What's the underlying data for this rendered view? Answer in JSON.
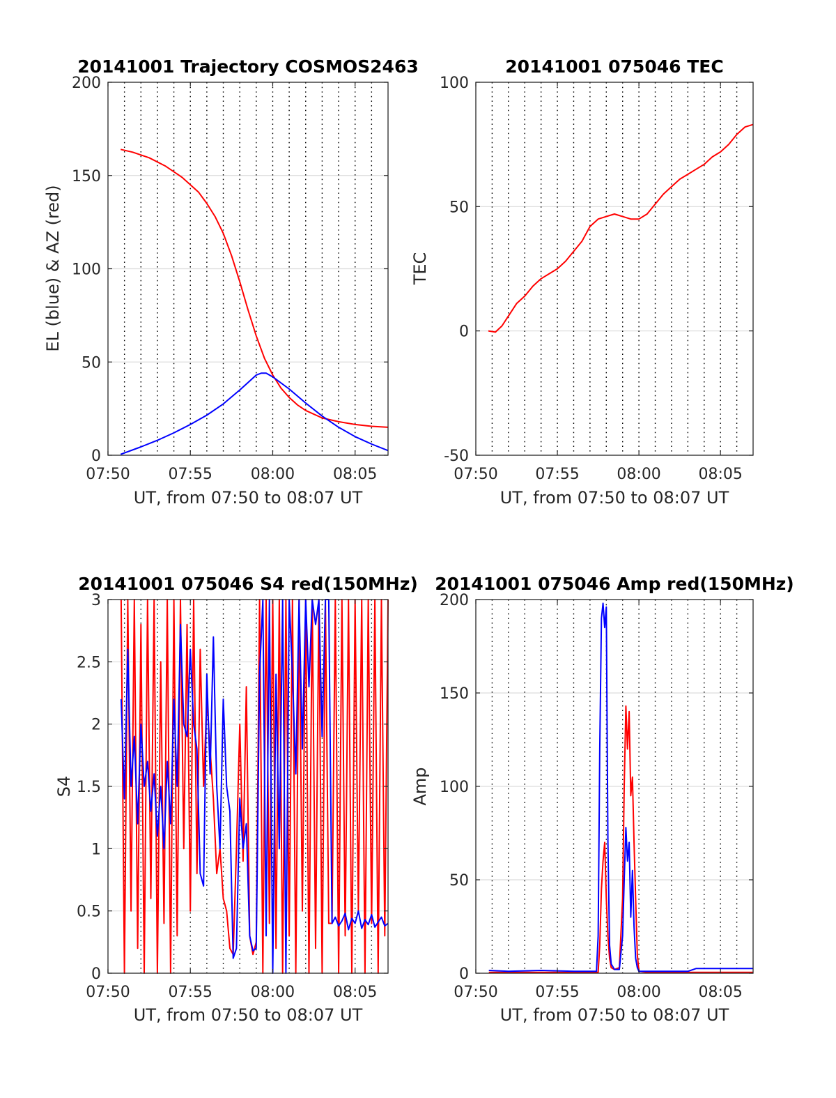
{
  "chart_data": [
    {
      "id": "trajectory",
      "type": "line",
      "title": "20141001 Trajectory COSMOS2463",
      "xlabel": "UT, from 07:50 to 08:07 UT",
      "ylabel": "EL (blue) & AZ (red)",
      "xlim": [
        0,
        17
      ],
      "ylim": [
        0,
        200
      ],
      "xticks": [
        0,
        5,
        10,
        15
      ],
      "xticklabels": [
        "07:50",
        "07:55",
        "08:00",
        "08:05"
      ],
      "yticks": [
        0,
        50,
        100,
        150,
        200
      ],
      "yticklabels": [
        "0",
        "50",
        "100",
        "150",
        "200"
      ],
      "x_unit": "minutes after 07:50 UT",
      "grid": true,
      "series": [
        {
          "color": "#ff0000",
          "x": [
            0.77,
            1.5,
            2.5,
            3.5,
            4.5,
            5.5,
            6.0,
            6.5,
            7.0,
            7.5,
            8.0,
            8.5,
            9.0,
            9.5,
            10.0,
            10.5,
            11.0,
            11.5,
            12.0,
            13.0,
            14.0,
            15.0,
            16.0,
            17.0
          ],
          "y": [
            164,
            162.5,
            159.5,
            155,
            149,
            141,
            135,
            128,
            119,
            107,
            93,
            78,
            64,
            52,
            43,
            36,
            31,
            27,
            24,
            20,
            18,
            16.5,
            15.5,
            15
          ]
        },
        {
          "color": "#0000ff",
          "x": [
            0.77,
            2,
            3,
            4,
            5,
            6,
            7,
            8,
            8.5,
            9.0,
            9.3,
            9.6,
            10,
            11,
            12,
            13,
            14,
            15,
            16,
            17
          ],
          "y": [
            0.5,
            4.5,
            8,
            12,
            16.5,
            21.5,
            27.5,
            35,
            39,
            43,
            44,
            44,
            42,
            35.5,
            28,
            21,
            15,
            10,
            6,
            2.5
          ]
        }
      ]
    },
    {
      "id": "tec",
      "type": "line",
      "title": "20141001 075046 TEC",
      "xlabel": "UT, from 07:50 to 08:07 UT",
      "ylabel": "TEC",
      "xlim": [
        0,
        17
      ],
      "ylim": [
        -50,
        100
      ],
      "xticks": [
        0,
        5,
        10,
        15
      ],
      "xticklabels": [
        "07:50",
        "07:55",
        "08:00",
        "08:05"
      ],
      "yticks": [
        -50,
        0,
        50,
        100
      ],
      "yticklabels": [
        "-50",
        "0",
        "50",
        "100"
      ],
      "x_unit": "minutes after 07:50 UT",
      "grid": true,
      "series": [
        {
          "color": "#ff0000",
          "x": [
            0.77,
            1.2,
            1.6,
            2.0,
            2.5,
            3.0,
            3.5,
            4.0,
            4.5,
            5.0,
            5.5,
            6.0,
            6.5,
            7.0,
            7.5,
            8.0,
            8.5,
            9.0,
            9.5,
            10.0,
            10.5,
            11.0,
            11.5,
            12.0,
            12.5,
            13.0,
            13.5,
            14.0,
            14.5,
            15.0,
            15.5,
            16.0,
            16.5,
            17.0
          ],
          "y": [
            0,
            -0.5,
            2,
            6,
            11,
            14,
            18,
            21,
            23,
            25,
            28,
            32,
            36,
            42,
            45,
            46,
            47,
            46,
            45,
            45,
            47,
            51,
            55,
            58,
            61,
            63,
            65,
            67,
            70,
            72,
            75,
            79,
            82,
            83
          ]
        }
      ]
    },
    {
      "id": "s4",
      "type": "line",
      "title": "20141001 075046 S4 red(150MHz)",
      "xlabel": "UT, from 07:50 to 08:07 UT",
      "ylabel": "S4",
      "xlim": [
        0,
        17
      ],
      "ylim": [
        0,
        3
      ],
      "xticks": [
        0,
        5,
        10,
        15
      ],
      "xticklabels": [
        "07:50",
        "07:55",
        "08:00",
        "08:05"
      ],
      "yticks": [
        0,
        0.5,
        1,
        1.5,
        2,
        2.5,
        3
      ],
      "yticklabels": [
        "0",
        "0.5",
        "1",
        "1.5",
        "2",
        "2.5",
        "3"
      ],
      "x_unit": "minutes after 07:50 UT",
      "grid": true,
      "series": [
        {
          "color": "#ff0000",
          "x": [
            0.8,
            1.0,
            1.2,
            1.4,
            1.6,
            1.8,
            2.0,
            2.2,
            2.4,
            2.6,
            2.8,
            3.0,
            3.2,
            3.4,
            3.6,
            3.8,
            4.0,
            4.2,
            4.4,
            4.6,
            4.8,
            5.0,
            5.2,
            5.4,
            5.6,
            5.8,
            6.0,
            6.2,
            6.4,
            6.6,
            6.8,
            7.0,
            7.2,
            7.4,
            7.6,
            7.8,
            8.0,
            8.2,
            8.4,
            8.6,
            8.8,
            9.0,
            9.2,
            9.4,
            9.6,
            9.8,
            10.0,
            10.2,
            10.4,
            10.6,
            10.8,
            11.0,
            11.2,
            11.4,
            11.6,
            11.8,
            12.0,
            12.2,
            12.4,
            12.6,
            12.8,
            13.0,
            13.2,
            13.4,
            13.6,
            13.8,
            14.0,
            14.2,
            14.4,
            14.6,
            14.8,
            15.0,
            15.2,
            15.4,
            15.6,
            15.8,
            16.0,
            16.2,
            16.4,
            16.6,
            16.8,
            17.0
          ],
          "y": [
            3,
            0,
            3,
            0.5,
            3,
            0.2,
            2.8,
            0,
            3,
            0.6,
            3,
            0,
            2.5,
            0.4,
            3,
            0,
            3,
            0.3,
            3,
            1.0,
            2.8,
            0.5,
            3,
            0.8,
            2.6,
            1.5,
            2.2,
            1.8,
            1.4,
            0.8,
            1.0,
            0.6,
            0.5,
            0.2,
            0.15,
            1.0,
            2.0,
            0.9,
            2.3,
            0.3,
            0.15,
            0.25,
            3,
            0,
            3,
            0.4,
            3,
            0.2,
            3,
            0,
            3,
            0.3,
            3,
            0,
            3,
            0.5,
            3,
            0,
            3,
            0.2,
            3,
            0,
            3,
            0.4,
            0.4,
            3,
            0,
            3,
            0.3,
            3,
            0,
            3,
            0.5,
            3,
            0,
            3,
            0.4,
            3,
            0,
            3,
            0.3,
            3
          ]
        },
        {
          "color": "#0000ff",
          "x": [
            0.8,
            1.0,
            1.2,
            1.4,
            1.6,
            1.8,
            2.0,
            2.2,
            2.4,
            2.6,
            2.8,
            3.0,
            3.2,
            3.4,
            3.6,
            3.8,
            4.0,
            4.2,
            4.4,
            4.6,
            4.8,
            5.0,
            5.2,
            5.4,
            5.6,
            5.8,
            6.0,
            6.2,
            6.4,
            6.6,
            6.8,
            7.0,
            7.2,
            7.4,
            7.6,
            7.8,
            8.0,
            8.2,
            8.4,
            8.6,
            8.8,
            9.0,
            9.2,
            9.4,
            9.6,
            9.8,
            10.0,
            10.2,
            10.4,
            10.6,
            10.8,
            11.0,
            11.2,
            11.4,
            11.6,
            11.8,
            12.0,
            12.2,
            12.4,
            12.6,
            12.8,
            13.0,
            13.2,
            13.4,
            13.6,
            13.8,
            14.0,
            14.2,
            14.4,
            14.6,
            14.8,
            15.0,
            15.2,
            15.4,
            15.6,
            15.8,
            16.0,
            16.2,
            16.4,
            16.6,
            16.8,
            17.0
          ],
          "y": [
            2.2,
            1.4,
            2.6,
            1.5,
            1.9,
            1.2,
            2.0,
            1.5,
            1.7,
            1.3,
            1.6,
            1.1,
            1.5,
            1.0,
            1.7,
            1.2,
            2.2,
            1.5,
            2.8,
            2.0,
            1.9,
            2.6,
            2.0,
            1.8,
            0.8,
            0.7,
            2.4,
            1.6,
            2.7,
            1.5,
            1.0,
            2.2,
            1.5,
            1.3,
            0.12,
            0.2,
            1.4,
            1.0,
            1.2,
            0.3,
            0.18,
            0.2,
            2.4,
            3.0,
            0.3,
            3.0,
            0.0,
            2.4,
            1.0,
            3.0,
            0.0,
            3.0,
            2.4,
            1.6,
            3.0,
            1.8,
            3.0,
            2.3,
            3.0,
            2.8,
            3.0,
            1.9,
            3.0,
            3.0,
            0.4,
            0.45,
            0.38,
            0.42,
            0.48,
            0.35,
            0.44,
            0.4,
            0.5,
            0.36,
            0.43,
            0.39,
            0.47,
            0.37,
            0.41,
            0.45,
            0.38,
            0.4
          ]
        }
      ]
    },
    {
      "id": "amp",
      "type": "line",
      "title": "20141001 075046 Amp red(150MHz)",
      "xlabel": "UT, from 07:50 to 08:07 UT",
      "ylabel": "Amp",
      "xlim": [
        0,
        17
      ],
      "ylim": [
        0,
        200
      ],
      "xticks": [
        0,
        5,
        10,
        15
      ],
      "xticklabels": [
        "07:50",
        "07:55",
        "08:00",
        "08:05"
      ],
      "yticks": [
        0,
        50,
        100,
        150,
        200
      ],
      "yticklabels": [
        "0",
        "50",
        "100",
        "150",
        "200"
      ],
      "x_unit": "minutes after 07:50 UT",
      "grid": true,
      "series": [
        {
          "color": "#ff0000",
          "x": [
            0.8,
            2,
            4,
            6,
            7.5,
            7.6,
            7.7,
            7.8,
            7.9,
            8.0,
            8.1,
            8.2,
            8.3,
            8.5,
            8.8,
            9.0,
            9.1,
            9.2,
            9.3,
            9.4,
            9.5,
            9.6,
            9.7,
            9.8,
            9.9,
            10.0,
            10.5,
            12,
            14,
            17
          ],
          "y": [
            0.5,
            0.5,
            0.5,
            0.5,
            0.5,
            15,
            45,
            60,
            70,
            40,
            20,
            8,
            3,
            2,
            3,
            40,
            100,
            143,
            120,
            140,
            95,
            105,
            70,
            40,
            10,
            1,
            0.5,
            0.5,
            0.5,
            0.5
          ]
        },
        {
          "color": "#0000ff",
          "x": [
            0.8,
            2,
            4,
            6,
            7.4,
            7.5,
            7.6,
            7.7,
            7.8,
            7.9,
            8.0,
            8.1,
            8.2,
            8.3,
            8.5,
            8.8,
            9.0,
            9.1,
            9.2,
            9.3,
            9.4,
            9.5,
            9.6,
            9.7,
            9.8,
            9.9,
            10.0,
            11,
            13,
            13.5,
            15,
            17
          ],
          "y": [
            1.5,
            1,
            1.5,
            1,
            1,
            20,
            120,
            190,
            198,
            185,
            196,
            70,
            15,
            5,
            2,
            2,
            20,
            50,
            78,
            60,
            70,
            30,
            55,
            25,
            8,
            3,
            1,
            1,
            1,
            2.5,
            2.5,
            2.5
          ]
        }
      ]
    }
  ]
}
